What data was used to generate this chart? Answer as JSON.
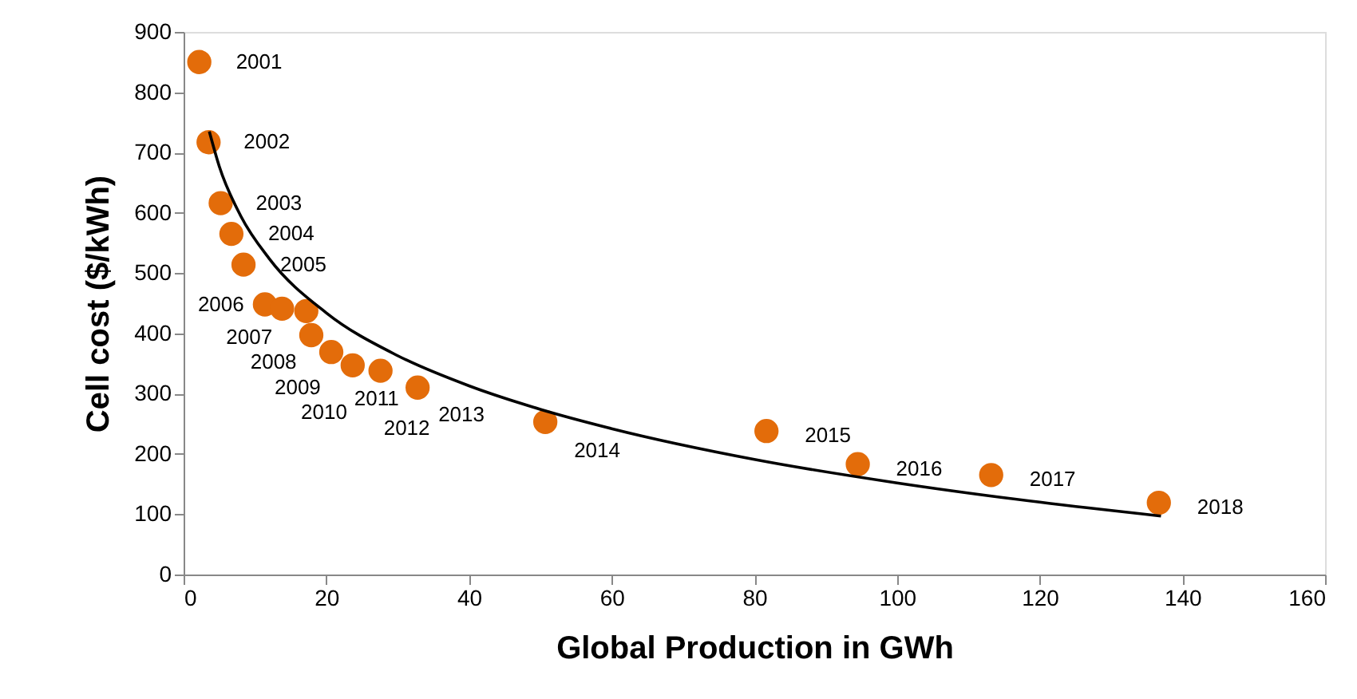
{
  "chart_data": {
    "type": "scatter",
    "xlabel": "Global Production in GWh",
    "ylabel": "Cell cost ($/kWh)",
    "x": [
      2.2,
      3.5,
      5.2,
      6.7,
      8.4,
      11.4,
      13.8,
      17.2,
      17.9,
      20.7,
      23.7,
      27.6,
      32.8,
      50.7,
      81.7,
      94.5,
      113.2,
      136.7
    ],
    "series": [
      {
        "color": "#e36c0a",
        "marker": "circle",
        "values": [
          850,
          717,
          616,
          565,
          514,
          448,
          441,
          437,
          397,
          369,
          347,
          338,
          310,
          253,
          238,
          183,
          165,
          119
        ]
      },
      {
        "type": "line",
        "color": "#000000",
        "marker": "none",
        "line_style": "solid",
        "x": [
          3.6,
          5,
          8,
          12,
          20,
          30,
          40,
          50,
          60,
          80,
          100,
          120,
          137
        ],
        "values": [
          735,
          677,
          595,
          524,
          434,
          363,
          313,
          274,
          242,
          191,
          152,
          120,
          97
        ]
      }
    ],
    "annotations": [
      {
        "text": "2001",
        "x": 2.2,
        "y": 850
      },
      {
        "text": "2002",
        "x": 3.5,
        "y": 717
      },
      {
        "text": "2003",
        "x": 5.2,
        "y": 616
      },
      {
        "text": "2004",
        "x": 6.7,
        "y": 565
      },
      {
        "text": "2005",
        "x": 8.4,
        "y": 514
      },
      {
        "text": "2006",
        "x": 11.4,
        "y": 448
      },
      {
        "text": "2007",
        "x": 13.8,
        "y": 441
      },
      {
        "text": "2008",
        "x": 17.2,
        "y": 437
      },
      {
        "text": "2009",
        "x": 17.9,
        "y": 397
      },
      {
        "text": "2010",
        "x": 20.7,
        "y": 369
      },
      {
        "text": "2011",
        "x": 23.7,
        "y": 347
      },
      {
        "text": "2012",
        "x": 27.6,
        "y": 338
      },
      {
        "text": "2013",
        "x": 32.8,
        "y": 310
      },
      {
        "text": "2014",
        "x": 50.7,
        "y": 253
      },
      {
        "text": "2015",
        "x": 81.7,
        "y": 238
      },
      {
        "text": "2016",
        "x": 94.5,
        "y": 183
      },
      {
        "text": "2017",
        "x": 113.2,
        "y": 165
      },
      {
        "text": "2018",
        "x": 136.7,
        "y": 119
      }
    ],
    "xlim": [
      0,
      160
    ],
    "xticks": [
      0,
      20,
      40,
      60,
      80,
      100,
      120,
      140,
      160
    ],
    "ylim": [
      0,
      900
    ],
    "yticks": [
      0,
      100,
      200,
      300,
      400,
      500,
      600,
      700,
      800,
      900
    ],
    "grid": false
  }
}
